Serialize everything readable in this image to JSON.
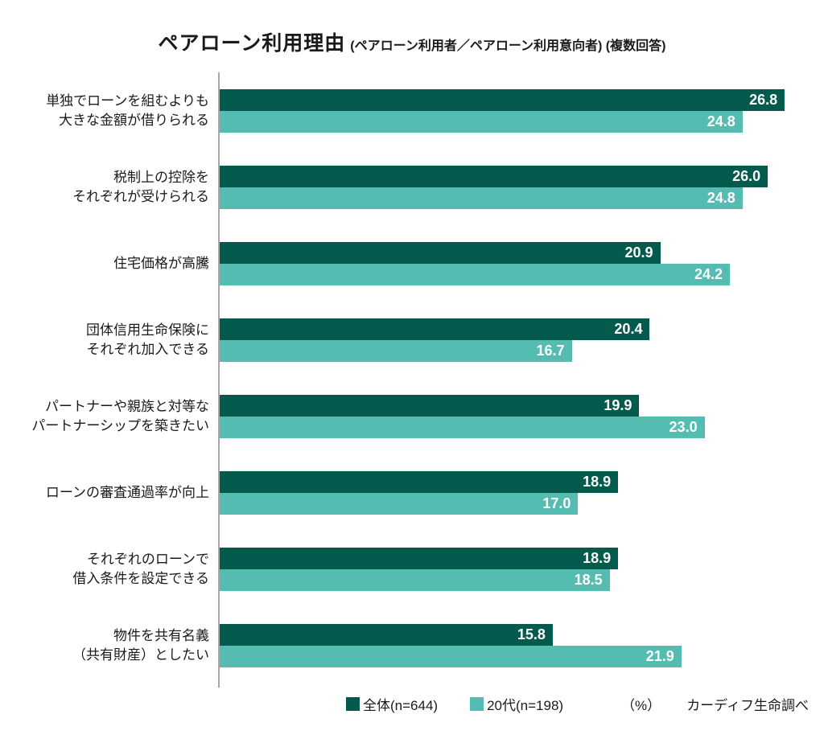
{
  "title": {
    "main": "ペアローン利用理由",
    "sub": "(ペアローン利用者／ペアローン利用意向者) (複数回答)"
  },
  "chart_data": {
    "type": "bar",
    "orientation": "horizontal",
    "title": "ペアローン利用理由 (ペアローン利用者／ペアローン利用意向者) (複数回答)",
    "unit": "%",
    "xlim": [
      0,
      28.7
    ],
    "grid": false,
    "legend_position": "bottom",
    "value_labels": "inside-end-white-bold",
    "categories": [
      "単独でローンを組むよりも大きな金額が借りられる",
      "税制上の控除をそれぞれが受けられる",
      "住宅価格が高騰",
      "団体信用生命保険にそれぞれ加入できる",
      "パートナーや親族と対等なパートナーシップを築きたい",
      "ローンの審査通過率が向上",
      "それぞれのローンで借入条件を設定できる",
      "物件を共有名義（共有財産）としたい"
    ],
    "category_lines": [
      [
        "単独でローンを組むよりも",
        "大きな金額が借りられる"
      ],
      [
        "税制上の控除を",
        "それぞれが受けられる"
      ],
      [
        "住宅価格が高騰"
      ],
      [
        "団体信用生命保険に",
        "それぞれ加入できる"
      ],
      [
        "パートナーや親族と対等な",
        "パートナーシップを築きたい"
      ],
      [
        "ローンの審査通過率が向上"
      ],
      [
        "それぞれのローンで",
        "借入条件を設定できる"
      ],
      [
        "物件を共有名義",
        "（共有財産）としたい"
      ]
    ],
    "series": [
      {
        "name": "全体(n=644)",
        "color": "#055A4E",
        "values": [
          26.8,
          26.0,
          20.9,
          20.4,
          19.9,
          18.9,
          18.9,
          15.8
        ]
      },
      {
        "name": "20代(n=198)",
        "color": "#55BCB2",
        "values": [
          24.8,
          24.8,
          24.2,
          16.7,
          23.0,
          17.0,
          18.5,
          21.9
        ]
      }
    ]
  },
  "footer": {
    "unit_label": "（%）",
    "source": "カーディフ生命調べ"
  }
}
